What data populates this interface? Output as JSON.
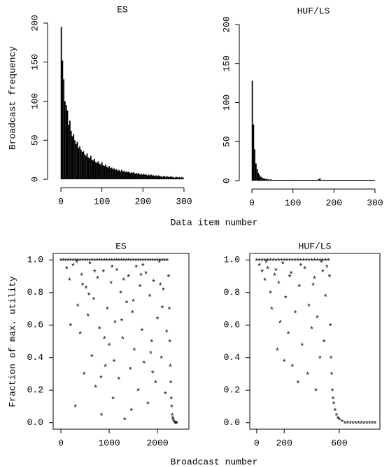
{
  "chart_data": [
    {
      "type": "bar",
      "title": "ES",
      "ylabel": "Broadcast frequency",
      "xlabel": "Data item number",
      "color": "#000000",
      "x": [
        1,
        4,
        7,
        10,
        13,
        16,
        19,
        22,
        25,
        28,
        31,
        34,
        37,
        40,
        43,
        46,
        49,
        52,
        55,
        58,
        61,
        64,
        67,
        70,
        73,
        76,
        79,
        82,
        85,
        88,
        91,
        94,
        97,
        100,
        103,
        106,
        109,
        112,
        115,
        118,
        121,
        124,
        127,
        130,
        133,
        136,
        139,
        142,
        145,
        148,
        151,
        154,
        157,
        160,
        163,
        166,
        169,
        172,
        175,
        178,
        181,
        184,
        187,
        190,
        193,
        196,
        199,
        202,
        205,
        208,
        211,
        214,
        217,
        220,
        223,
        226,
        229,
        232,
        235,
        238,
        241,
        244,
        247,
        250,
        253,
        256,
        259,
        262,
        265,
        268,
        271,
        274,
        277,
        280,
        283,
        286,
        289,
        292,
        295,
        298
      ],
      "values": [
        195,
        152,
        128,
        100,
        95,
        88,
        70,
        75,
        62,
        55,
        58,
        50,
        45,
        48,
        40,
        42,
        38,
        35,
        36,
        32,
        30,
        33,
        28,
        27,
        30,
        25,
        24,
        26,
        22,
        21,
        23,
        20,
        19,
        22,
        18,
        17,
        19,
        16,
        15,
        17,
        14,
        15,
        13,
        14,
        12,
        13,
        11,
        12,
        10,
        12,
        10,
        11,
        9,
        10,
        9,
        10,
        8,
        9,
        8,
        9,
        7,
        8,
        7,
        8,
        6,
        7,
        6,
        7,
        6,
        6,
        5,
        6,
        5,
        6,
        5,
        5,
        4,
        5,
        4,
        5,
        4,
        4,
        3,
        4,
        4,
        3,
        4,
        3,
        3,
        4,
        3,
        3,
        2,
        3,
        3,
        2,
        3,
        2,
        3,
        2
      ],
      "xlim": [
        -12,
        312
      ],
      "ylim": [
        -8,
        208
      ],
      "xticks": [
        0,
        100,
        200,
        300
      ],
      "yticks": [
        0,
        50,
        100,
        150,
        200
      ]
    },
    {
      "type": "bar",
      "title": "HUF/LS",
      "color": "#000000",
      "x": [
        1,
        4,
        7,
        10,
        13,
        16,
        19,
        22,
        25,
        28,
        31,
        34,
        37,
        40,
        43,
        46,
        49,
        52,
        55,
        58,
        61,
        64,
        67,
        70,
        73,
        76,
        79,
        82,
        85,
        88,
        91,
        94,
        97,
        100,
        103,
        106,
        109,
        112,
        115,
        118,
        121,
        124,
        127,
        130,
        133,
        136,
        139,
        142,
        145,
        148,
        151,
        154,
        157,
        160,
        163,
        166,
        169,
        172,
        175,
        178,
        181,
        184,
        187,
        190,
        193,
        196,
        199,
        202,
        205,
        208,
        211,
        214,
        217,
        220,
        223,
        226,
        229,
        232,
        235,
        238,
        241,
        244,
        247,
        250,
        253,
        256,
        259,
        262,
        265,
        268,
        271,
        274,
        277,
        280,
        283,
        286,
        289,
        292,
        295,
        298
      ],
      "values": [
        128,
        72,
        40,
        22,
        15,
        10,
        7,
        5,
        4,
        3,
        3,
        2,
        2,
        2,
        1,
        2,
        1,
        1,
        1,
        1,
        1,
        1,
        1,
        1,
        1,
        1,
        1,
        1,
        1,
        1,
        1,
        1,
        1,
        1,
        1,
        1,
        1,
        1,
        1,
        1,
        1,
        1,
        1,
        1,
        1,
        1,
        1,
        1,
        1,
        1,
        1,
        1,
        1,
        1,
        2,
        3,
        1,
        1,
        1,
        1,
        1,
        1,
        1,
        1,
        1,
        1,
        1,
        1,
        1,
        1,
        1,
        1,
        1,
        1,
        1,
        1,
        1,
        1,
        1,
        1,
        1,
        1,
        1,
        1,
        1,
        1,
        1,
        1,
        1,
        1,
        1,
        1,
        1,
        1,
        1,
        1,
        1,
        1,
        1,
        1
      ],
      "xlim": [
        -12,
        312
      ],
      "ylim": [
        -8,
        208
      ],
      "xticks": [
        0,
        100,
        200,
        300
      ],
      "yticks": [
        0,
        50,
        100,
        150,
        200
      ]
    },
    {
      "type": "scatter",
      "title": "ES",
      "ylabel": "Fraction of max. utility",
      "xlabel": "Broadcast number",
      "color": "#000000",
      "x": [
        0,
        50,
        100,
        150,
        200,
        250,
        300,
        350,
        400,
        450,
        500,
        550,
        600,
        650,
        700,
        750,
        800,
        850,
        900,
        950,
        1000,
        1050,
        1100,
        1150,
        1200,
        1250,
        1300,
        1350,
        1400,
        1450,
        1500,
        1550,
        1600,
        1650,
        1700,
        1750,
        1800,
        1850,
        1900,
        1950,
        2000,
        2050,
        2100,
        2150,
        2200,
        120,
        180,
        250,
        300,
        350,
        400,
        430,
        480,
        520,
        560,
        600,
        640,
        680,
        720,
        760,
        800,
        840,
        880,
        920,
        960,
        1000,
        1040,
        1080,
        1120,
        1160,
        1200,
        1240,
        1280,
        1320,
        1360,
        1400,
        1440,
        1480,
        1520,
        1560,
        1600,
        1640,
        1680,
        1720,
        1760,
        1800,
        1840,
        1880,
        1920,
        1960,
        2000,
        2040,
        2080,
        2120,
        2160,
        200,
        450,
        700,
        900,
        1100,
        1300,
        1500,
        1700,
        1900,
        2100,
        330,
        580,
        830,
        1060,
        1260,
        1460,
        1660,
        1860,
        2060,
        2190,
        2230,
        2245,
        2255,
        2265,
        2275,
        2285,
        2295,
        2305,
        2315,
        2325,
        2340,
        2360,
        2380,
        2400
      ],
      "values": [
        1,
        1,
        1,
        1,
        1,
        1,
        1,
        1,
        1,
        1,
        1,
        1,
        1,
        1,
        1,
        1,
        1,
        1,
        1,
        1,
        1,
        1,
        1,
        1,
        1,
        1,
        1,
        1,
        1,
        1,
        1,
        1,
        1,
        1,
        1,
        1,
        1,
        1,
        1,
        1,
        1,
        1,
        1,
        1,
        1,
        0.95,
        0.88,
        0.97,
        0.1,
        0.72,
        0.55,
        0.91,
        0.3,
        0.83,
        0.66,
        0.98,
        0.41,
        0.76,
        0.22,
        0.89,
        0.58,
        0.05,
        0.93,
        0.35,
        0.7,
        0.48,
        0.86,
        0.15,
        0.62,
        0.94,
        0.27,
        0.8,
        0.52,
        0.02,
        0.74,
        0.9,
        0.33,
        0.68,
        0.45,
        0.96,
        0.2,
        0.84,
        0.57,
        0.37,
        0.92,
        0.12,
        0.78,
        0.5,
        0.87,
        0.25,
        0.64,
        0.99,
        0.4,
        0.82,
        0.18,
        0.6,
        0.85,
        0.93,
        0.52,
        0.38,
        0.88,
        0.75,
        0.97,
        0.31,
        0.71,
        0.99,
        0.79,
        0.28,
        0.96,
        0.63,
        0.08,
        0.91,
        0.43,
        0.85,
        0.56,
        0.9,
        0.7,
        0.5,
        0.35,
        0.25,
        0.15,
        0.1,
        0.05,
        0.03,
        0.02,
        0.01,
        0,
        0,
        0
      ],
      "xlim": [
        -160,
        2650
      ],
      "ylim": [
        -0.04,
        1.04
      ],
      "xticks": [
        0,
        1000,
        2000
      ],
      "yticks": [
        {
          "value": 0,
          "label": "0.0"
        },
        0.2,
        0.4,
        0.6,
        0.8,
        {
          "value": 1,
          "label": "1.0"
        }
      ]
    },
    {
      "type": "scatter",
      "title": "HUF/LS",
      "color": "#000000",
      "x": [
        0,
        20,
        40,
        60,
        80,
        100,
        120,
        140,
        160,
        180,
        200,
        220,
        240,
        260,
        280,
        300,
        320,
        340,
        360,
        380,
        400,
        420,
        440,
        460,
        480,
        500,
        520,
        20,
        40,
        60,
        80,
        100,
        110,
        130,
        150,
        160,
        170,
        190,
        200,
        210,
        230,
        250,
        260,
        280,
        300,
        310,
        330,
        350,
        370,
        380,
        400,
        420,
        430,
        440,
        460,
        480,
        490,
        500,
        510,
        70,
        140,
        240,
        320,
        410,
        470,
        530,
        535,
        540,
        545,
        550,
        555,
        560,
        570,
        580,
        590,
        600,
        620,
        640,
        660,
        680,
        700,
        720,
        740,
        760,
        780,
        800,
        820,
        840,
        860
      ],
      "values": [
        1,
        1,
        1,
        1,
        1,
        1,
        1,
        1,
        1,
        1,
        1,
        1,
        1,
        1,
        1,
        1,
        1,
        1,
        1,
        1,
        1,
        1,
        1,
        1,
        1,
        1,
        1,
        0.97,
        0.93,
        0.88,
        0.95,
        0.8,
        0.7,
        0.91,
        0.45,
        0.86,
        0.62,
        0.98,
        0.38,
        0.77,
        0.55,
        0.92,
        0.35,
        0.68,
        0.25,
        0.84,
        0.48,
        0.95,
        0.3,
        0.72,
        0.58,
        0.89,
        0.2,
        0.65,
        0.4,
        0.93,
        0.5,
        0.78,
        0.96,
        0.99,
        0.94,
        0.9,
        0.97,
        0.85,
        0.99,
        0.9,
        0.6,
        0.4,
        0.3,
        0.2,
        0.15,
        0.12,
        0.08,
        0.05,
        0.03,
        0.02,
        0.01,
        0,
        0,
        0,
        0,
        0,
        0,
        0,
        0,
        0,
        0,
        0,
        0
      ],
      "xlim": [
        -50,
        895
      ],
      "ylim": [
        -0.04,
        1.04
      ],
      "xticks": [
        0,
        200,
        600
      ],
      "yticks": [
        {
          "value": 0,
          "label": "0.0"
        },
        0.2,
        0.4,
        0.6,
        0.8,
        {
          "value": 1,
          "label": "1.0"
        }
      ]
    }
  ]
}
